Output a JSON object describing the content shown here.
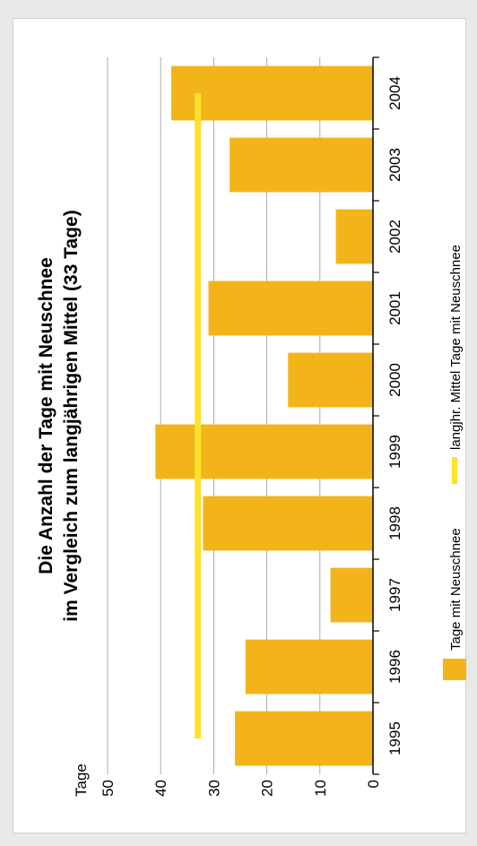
{
  "chart_data": {
    "type": "bar",
    "orientation": "rotated",
    "title_line1": "Die Anzahl der Tage mit Neuschnee",
    "title_line2": "im Vergleich zum langjährigen Mittel (33 Tage)",
    "ylabel": "Tage",
    "categories": [
      "1995",
      "1996",
      "1997",
      "1998",
      "1999",
      "2000",
      "2001",
      "2002",
      "2003",
      "2004"
    ],
    "series": [
      {
        "name": "Tage mit Neuschnee",
        "values": [
          26,
          24,
          8,
          32,
          41,
          16,
          31,
          7,
          27,
          38
        ],
        "color": "#f2b418"
      },
      {
        "name": "langjhr. Mittel Tage mit Neuschnee",
        "values": [
          33,
          33,
          33,
          33,
          33,
          33,
          33,
          33,
          33,
          33
        ],
        "color": "#ffe12e"
      }
    ],
    "ylim": [
      0,
      50
    ],
    "yticks": [
      "0",
      "10",
      "20",
      "30",
      "40",
      "50"
    ],
    "grid": true,
    "legend": "bottom"
  }
}
